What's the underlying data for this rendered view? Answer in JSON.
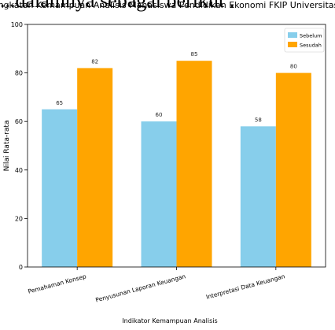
{
  "page": {
    "background_text": "...dalamnya sebagai berikut :"
  },
  "chart_data": {
    "type": "bar",
    "title": "Peningkatan Kemampuan Analisis Mahasiswa Pendidikan Ekonomi FKIP Universitas Nias",
    "xlabel": "Indikator Kemampuan Analisis",
    "ylabel": "Nilai Rata-rata",
    "ylim": [
      0,
      100
    ],
    "yticks": [
      0,
      20,
      40,
      60,
      80,
      100
    ],
    "grid": false,
    "legend_position": "top-right",
    "categories": [
      "Pemahaman Konsep",
      "Penyusunan Laporan Keuangan",
      "Interpretasi Data Keuangan"
    ],
    "series": [
      {
        "name": "Sebelum",
        "color": "#87CEEB",
        "values": [
          65,
          60,
          58
        ]
      },
      {
        "name": "Sesudah",
        "color": "#FFA500",
        "values": [
          82,
          85,
          80
        ]
      }
    ]
  }
}
